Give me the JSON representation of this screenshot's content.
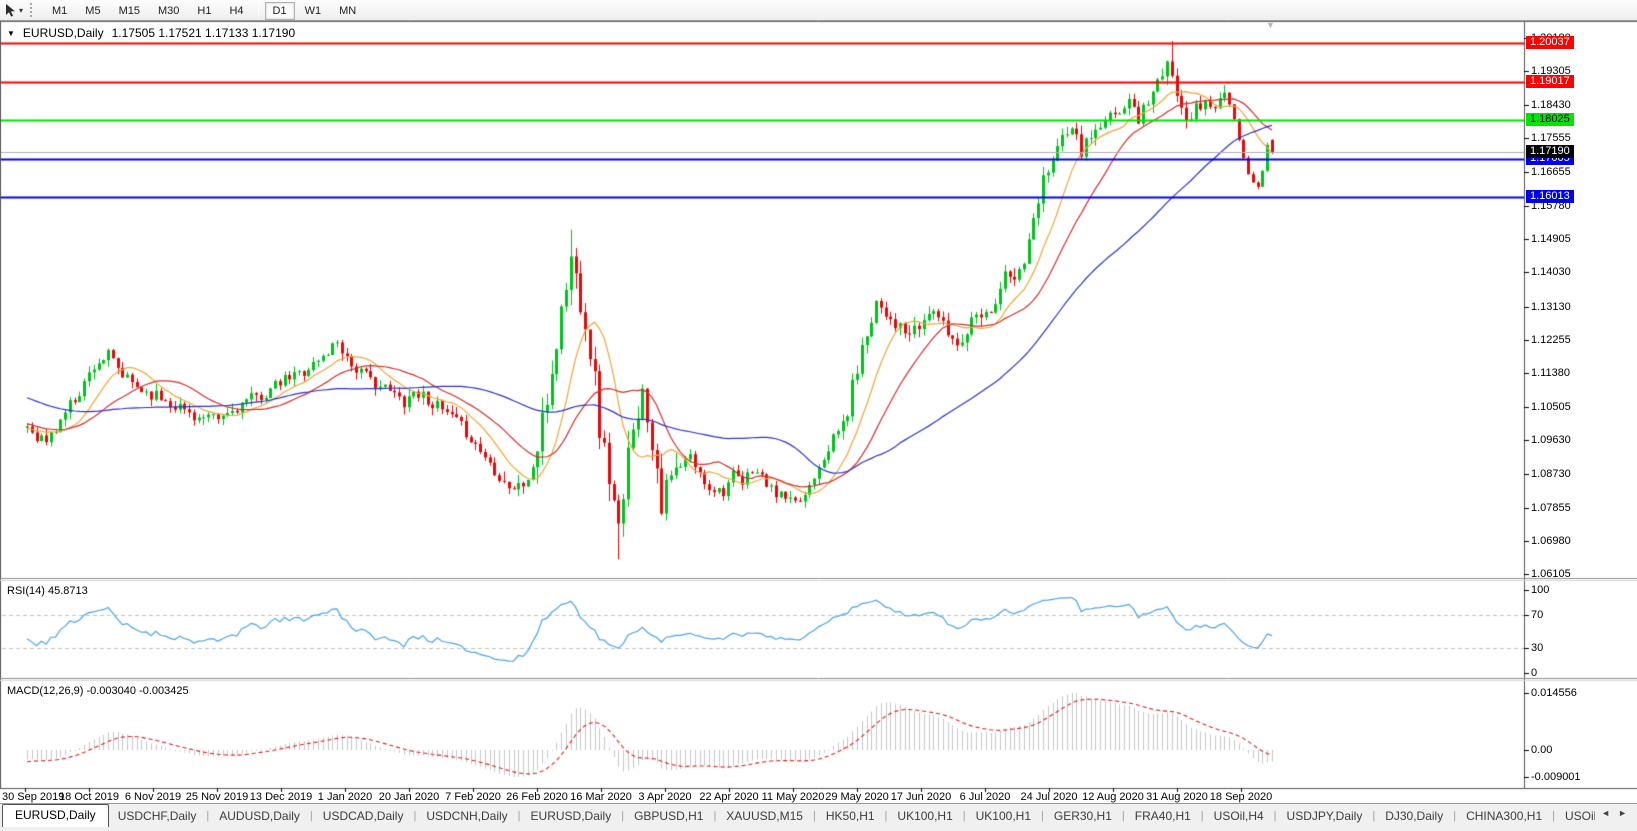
{
  "toolbar": {
    "timeframes": [
      "M1",
      "M5",
      "M15",
      "M30",
      "H1",
      "H4",
      "D1",
      "W1",
      "MN"
    ],
    "active_timeframe": "D1",
    "group_break_before": "D1"
  },
  "chart": {
    "title": {
      "symbol": "EURUSD,Daily",
      "ohlc": "1.17505 1.17521 1.17133 1.17190"
    }
  },
  "chart_data": {
    "type": "candlestick",
    "symbol": "EURUSD",
    "timeframe": "Daily",
    "title": "EURUSD,Daily",
    "current_bar": {
      "open": 1.17505,
      "high": 1.17521,
      "low": 1.17133,
      "close": 1.1719
    },
    "x_ticks": [
      "30 Sep 2019",
      "18 Oct 2019",
      "6 Nov 2019",
      "25 Nov 2019",
      "13 Dec 2019",
      "1 Jan 2020",
      "20 Jan 2020",
      "7 Feb 2020",
      "26 Feb 2020",
      "16 Mar 2020",
      "3 Apr 2020",
      "22 Apr 2020",
      "11 May 2020",
      "29 May 2020",
      "17 Jun 2020",
      "6 Jul 2020",
      "24 Jul 2020",
      "12 Aug 2020",
      "31 Aug 2020",
      "18 Sep 2020"
    ],
    "y_ticks": [
      "1.20180",
      "1.19305",
      "1.18430",
      "1.17555",
      "1.16655",
      "1.15780",
      "1.14905",
      "1.14030",
      "1.13130",
      "1.12255",
      "1.11380",
      "1.10505",
      "1.09630",
      "1.08730",
      "1.07855",
      "1.06980",
      "1.06105"
    ],
    "y_range": {
      "top": 1.206,
      "bottom": 1.0601
    },
    "colors": {
      "up": "#00C11E",
      "down": "#E00A0A",
      "ma_fast": "#EFA63C",
      "ma_mid": "#D23030",
      "ma_slow": "#2E34C8",
      "rsi_line": "#4DA3E8",
      "rsi_levels": "#c4c4c4",
      "macd_hist": "#c6c6c6",
      "macd_signal": "#E02020",
      "current_line": "#b0b0b0"
    },
    "moving_averages": [
      {
        "period": 10,
        "color": "#EFA63C"
      },
      {
        "period": 20,
        "color": "#D23030"
      },
      {
        "period": 50,
        "color": "#2E34C8"
      }
    ],
    "h_lines": [
      {
        "price": 1.20037,
        "label": "1.20037",
        "color": "#FF0000",
        "text": "#ffffff"
      },
      {
        "price": 1.19017,
        "label": "1.19017",
        "color": "#FF0000",
        "text": "#ffffff"
      },
      {
        "price": 1.18025,
        "label": "1.18025",
        "color": "#00E400",
        "text": "#000000"
      },
      {
        "price": 1.17005,
        "label": "1.17005",
        "color": "#0000F0",
        "text": "#ffffff"
      },
      {
        "price": 1.16013,
        "label": "1.16013",
        "color": "#0000F0",
        "text": "#ffffff"
      }
    ],
    "current_price": {
      "value": 1.1719,
      "label": "1.17190",
      "bg": "#000000",
      "text": "#ffffff"
    },
    "rsi": {
      "label": "RSI(14) 45.8713",
      "period": 14,
      "current": 45.8713,
      "ticks": [
        {
          "v": 100,
          "t": "100"
        },
        {
          "v": 70,
          "t": "70"
        },
        {
          "v": 30,
          "t": "30"
        },
        {
          "v": 0,
          "t": "0"
        }
      ],
      "levels": [
        70,
        30
      ]
    },
    "macd": {
      "label": "MACD(12,26,9) -0.003040 -0.003425",
      "fast": 12,
      "slow": 26,
      "signal": 9,
      "current_macd": -0.00304,
      "current_signal": -0.003425,
      "tick_max": "0.014556",
      "tick_zero": "0.00",
      "tick_min": "-0.009001"
    },
    "synth": {
      "seed": 11,
      "num_candles": 262,
      "start_index": -60,
      "body_noise": 0.0016,
      "wick_noise": 0.002,
      "anchors": [
        [
          -60,
          1.127
        ],
        [
          -45,
          1.118
        ],
        [
          -30,
          1.109
        ],
        [
          -15,
          1.102
        ],
        [
          -5,
          1.0985
        ],
        [
          0,
          1.1
        ],
        [
          2,
          1.0975
        ],
        [
          4,
          1.096
        ],
        [
          6,
          1.099
        ],
        [
          8,
          1.104
        ],
        [
          11,
          1.109
        ],
        [
          14,
          1.116
        ],
        [
          17,
          1.1185
        ],
        [
          20,
          1.113
        ],
        [
          24,
          1.1095
        ],
        [
          27,
          1.108
        ],
        [
          30,
          1.1062
        ],
        [
          32,
          1.105
        ],
        [
          36,
          1.102
        ],
        [
          40,
          1.1015
        ],
        [
          43,
          1.104
        ],
        [
          46,
          1.1065
        ],
        [
          50,
          1.1085
        ],
        [
          54,
          1.112
        ],
        [
          58,
          1.1145
        ],
        [
          62,
          1.118
        ],
        [
          65,
          1.1225
        ],
        [
          68,
          1.116
        ],
        [
          72,
          1.112
        ],
        [
          76,
          1.109
        ],
        [
          79,
          1.1065
        ],
        [
          81,
          1.109
        ],
        [
          83,
          1.108
        ],
        [
          85,
          1.106
        ],
        [
          87,
          1.104
        ],
        [
          90,
          1.101
        ],
        [
          92,
          1.0985
        ],
        [
          94,
          1.095
        ],
        [
          96,
          1.092
        ],
        [
          98,
          1.0885
        ],
        [
          100,
          1.0855
        ],
        [
          102,
          1.0837
        ],
        [
          104,
          1.0845
        ],
        [
          106,
          1.0885
        ],
        [
          108,
          1.1
        ],
        [
          110,
          1.114
        ],
        [
          112,
          1.13
        ],
        [
          114,
          1.144
        ],
        [
          115,
          1.139
        ],
        [
          117,
          1.128
        ],
        [
          119,
          1.112
        ],
        [
          120,
          1.0995
        ],
        [
          122,
          1.087
        ],
        [
          124,
          1.072
        ],
        [
          125,
          1.079
        ],
        [
          126,
          1.092
        ],
        [
          127,
          1.102
        ],
        [
          129,
          1.108
        ],
        [
          130,
          1.103
        ],
        [
          132,
          1.09
        ],
        [
          133,
          1.08
        ],
        [
          135,
          1.086
        ],
        [
          137,
          1.089
        ],
        [
          139,
          1.092
        ],
        [
          141,
          1.087
        ],
        [
          143,
          1.084
        ],
        [
          146,
          1.083
        ],
        [
          148,
          1.087
        ],
        [
          150,
          1.0845
        ],
        [
          152,
          1.089
        ],
        [
          154,
          1.0865
        ],
        [
          156,
          1.083
        ],
        [
          159,
          1.081
        ],
        [
          161,
          1.079
        ],
        [
          163,
          1.082
        ],
        [
          166,
          1.09
        ],
        [
          168,
          1.0945
        ],
        [
          170,
          1.0985
        ],
        [
          172,
          1.1035
        ],
        [
          173,
          1.1105
        ],
        [
          175,
          1.12
        ],
        [
          178,
          1.133
        ],
        [
          180,
          1.13
        ],
        [
          182,
          1.127
        ],
        [
          184,
          1.124
        ],
        [
          186,
          1.1245
        ],
        [
          188,
          1.1275
        ],
        [
          190,
          1.131
        ],
        [
          192,
          1.126
        ],
        [
          195,
          1.1215
        ],
        [
          197,
          1.125
        ],
        [
          199,
          1.131
        ],
        [
          201,
          1.129
        ],
        [
          203,
          1.133
        ],
        [
          205,
          1.1395
        ],
        [
          207,
          1.138
        ],
        [
          209,
          1.143
        ],
        [
          211,
          1.153
        ],
        [
          213,
          1.165
        ],
        [
          215,
          1.171
        ],
        [
          218,
          1.178
        ],
        [
          220,
          1.175
        ],
        [
          221,
          1.172
        ],
        [
          223,
          1.176
        ],
        [
          226,
          1.179
        ],
        [
          228,
          1.182
        ],
        [
          231,
          1.185
        ],
        [
          233,
          1.181
        ],
        [
          234,
          1.1835
        ],
        [
          236,
          1.188
        ],
        [
          239,
          1.194
        ],
        [
          240,
          1.191
        ],
        [
          242,
          1.185
        ],
        [
          243,
          1.1815
        ],
        [
          245,
          1.183
        ],
        [
          247,
          1.185
        ],
        [
          249,
          1.184
        ],
        [
          251,
          1.1865
        ],
        [
          252,
          1.184
        ],
        [
          253,
          1.18
        ],
        [
          254,
          1.175
        ],
        [
          255,
          1.17
        ],
        [
          256,
          1.166
        ],
        [
          257,
          1.164
        ],
        [
          258,
          1.163
        ],
        [
          259,
          1.1665
        ],
        [
          260,
          1.1742
        ],
        [
          261,
          1.1719
        ]
      ],
      "volatility": [
        [
          -60,
          99,
          1.0
        ],
        [
          100,
          105,
          1.3
        ],
        [
          106,
          136,
          2.3
        ],
        [
          137,
          170,
          0.9
        ],
        [
          171,
          252,
          1.15
        ],
        [
          253,
          261,
          0.35
        ]
      ],
      "overrides": {
        "114": {
          "h": 1.1515
        },
        "124": {
          "l": 1.065
        },
        "240": {
          "h": 1.201
        },
        "261": {
          "o": 1.17505,
          "h": 1.17521,
          "l": 1.17133,
          "c": 1.1719
        }
      }
    }
  },
  "tabs": {
    "items": [
      "EURUSD,Daily",
      "USDCHF,Daily",
      "AUDUSD,Daily",
      "USDCAD,Daily",
      "USDCNH,Daily",
      "EURUSD,Daily",
      "GBPUSD,H1",
      "XAUUSD,M15",
      "HK50,H1",
      "UK100,H1",
      "UK100,H1",
      "GER30,H1",
      "FRA40,H1",
      "USOil,H4",
      "USDJPY,Daily",
      "DJ30,Daily",
      "CHINA300,H1",
      "USOil,H"
    ],
    "active_index": 0,
    "scroll_left": "◄",
    "scroll_right": "►"
  },
  "icons": {
    "symbol_caret": "▼",
    "dropdown_caret": "▾",
    "shift_marker": "▼"
  }
}
